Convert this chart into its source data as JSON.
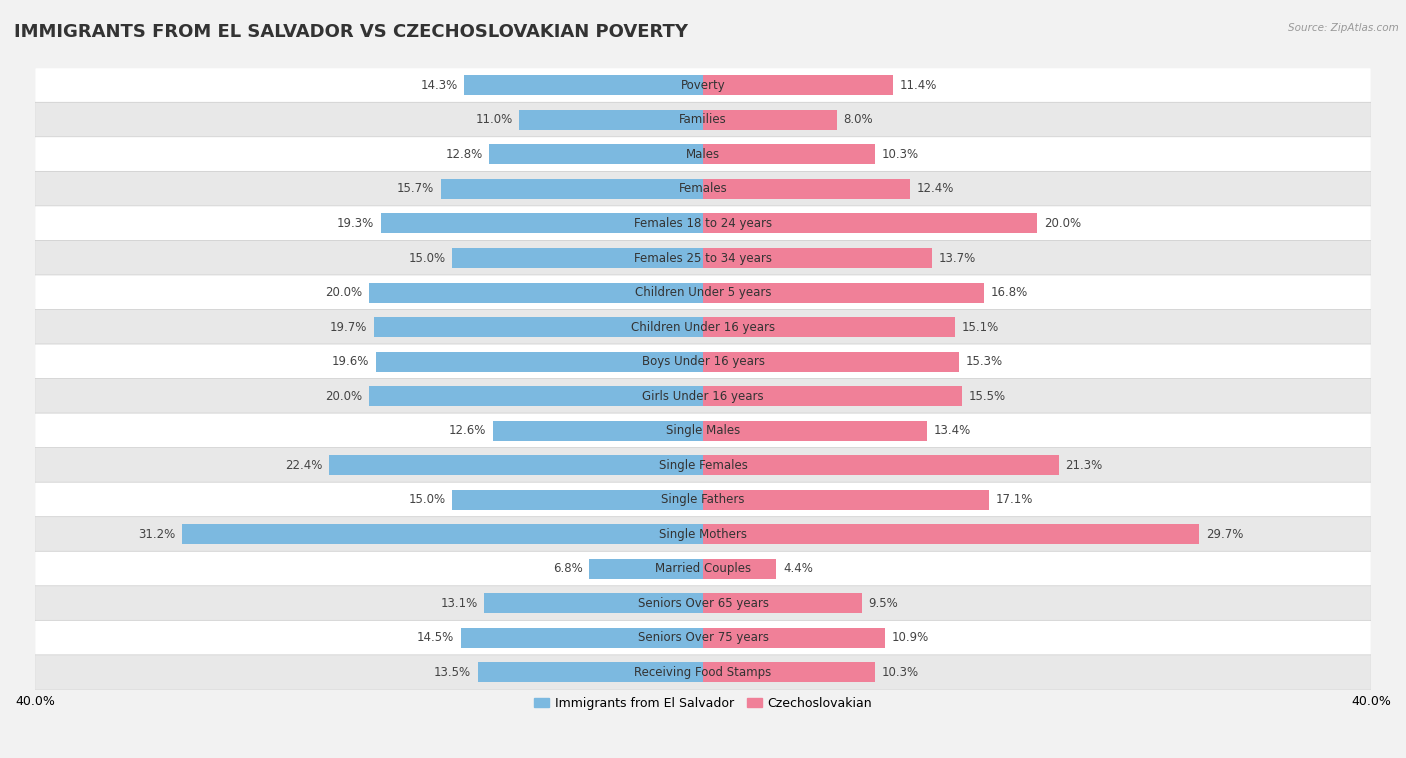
{
  "title": "IMMIGRANTS FROM EL SALVADOR VS CZECHOSLOVAKIAN POVERTY",
  "source": "Source: ZipAtlas.com",
  "categories": [
    "Poverty",
    "Families",
    "Males",
    "Females",
    "Females 18 to 24 years",
    "Females 25 to 34 years",
    "Children Under 5 years",
    "Children Under 16 years",
    "Boys Under 16 years",
    "Girls Under 16 years",
    "Single Males",
    "Single Females",
    "Single Fathers",
    "Single Mothers",
    "Married Couples",
    "Seniors Over 65 years",
    "Seniors Over 75 years",
    "Receiving Food Stamps"
  ],
  "left_values": [
    14.3,
    11.0,
    12.8,
    15.7,
    19.3,
    15.0,
    20.0,
    19.7,
    19.6,
    20.0,
    12.6,
    22.4,
    15.0,
    31.2,
    6.8,
    13.1,
    14.5,
    13.5
  ],
  "right_values": [
    11.4,
    8.0,
    10.3,
    12.4,
    20.0,
    13.7,
    16.8,
    15.1,
    15.3,
    15.5,
    13.4,
    21.3,
    17.1,
    29.7,
    4.4,
    9.5,
    10.9,
    10.3
  ],
  "left_color": "#7cb9e0",
  "right_color": "#f08098",
  "left_label": "Immigrants from El Salvador",
  "right_label": "Czechoslovakian",
  "bg_color": "#f2f2f2",
  "row_colors": [
    "#ffffff",
    "#e8e8e8"
  ],
  "xlim": 40.0,
  "title_fontsize": 13,
  "value_fontsize": 8.5,
  "category_fontsize": 8.5,
  "bar_height": 0.58
}
